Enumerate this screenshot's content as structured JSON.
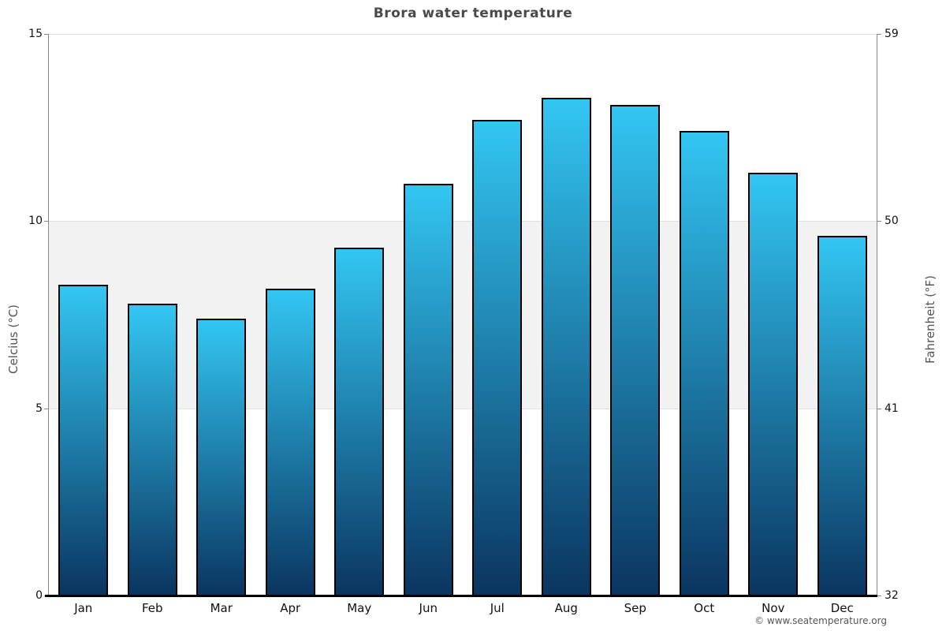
{
  "title": "Brora water temperature",
  "footer": "© www.seatemperature.org",
  "chart_data": {
    "type": "bar",
    "title": "Brora water temperature",
    "categories": [
      "Jan",
      "Feb",
      "Mar",
      "Apr",
      "May",
      "Jun",
      "Jul",
      "Aug",
      "Sep",
      "Oct",
      "Nov",
      "Dec"
    ],
    "values": [
      8.3,
      7.8,
      7.4,
      8.2,
      9.3,
      11.0,
      12.7,
      13.3,
      13.1,
      12.4,
      11.3,
      9.6
    ],
    "unit": "°C",
    "xlabel": "",
    "ylabel_left": "Celcius (°C)",
    "ylabel_right": "Fahrenheit (°F)",
    "ylim": [
      0,
      15
    ],
    "yticks_celsius": [
      0,
      5,
      10,
      15
    ],
    "yticks_fahrenheit": [
      32,
      41,
      50,
      59
    ],
    "shaded_band_celsius": [
      5,
      10
    ],
    "grid": "horizontal lines at 5, 10, 15; gray band between 5 and 10",
    "legend": "none",
    "colors": {
      "bar_gradient_top": "#33c6f3",
      "bar_gradient_bottom": "#0a3560",
      "bar_border": "#000000",
      "band_fill": "#f2f2f2",
      "grid_line": "#e0e0e0",
      "axis_line": "#888888",
      "bottom_axis_line": "#000000",
      "title_text": "#4a4a4a",
      "tick_text": "#111111",
      "footer_text": "#555555"
    }
  }
}
